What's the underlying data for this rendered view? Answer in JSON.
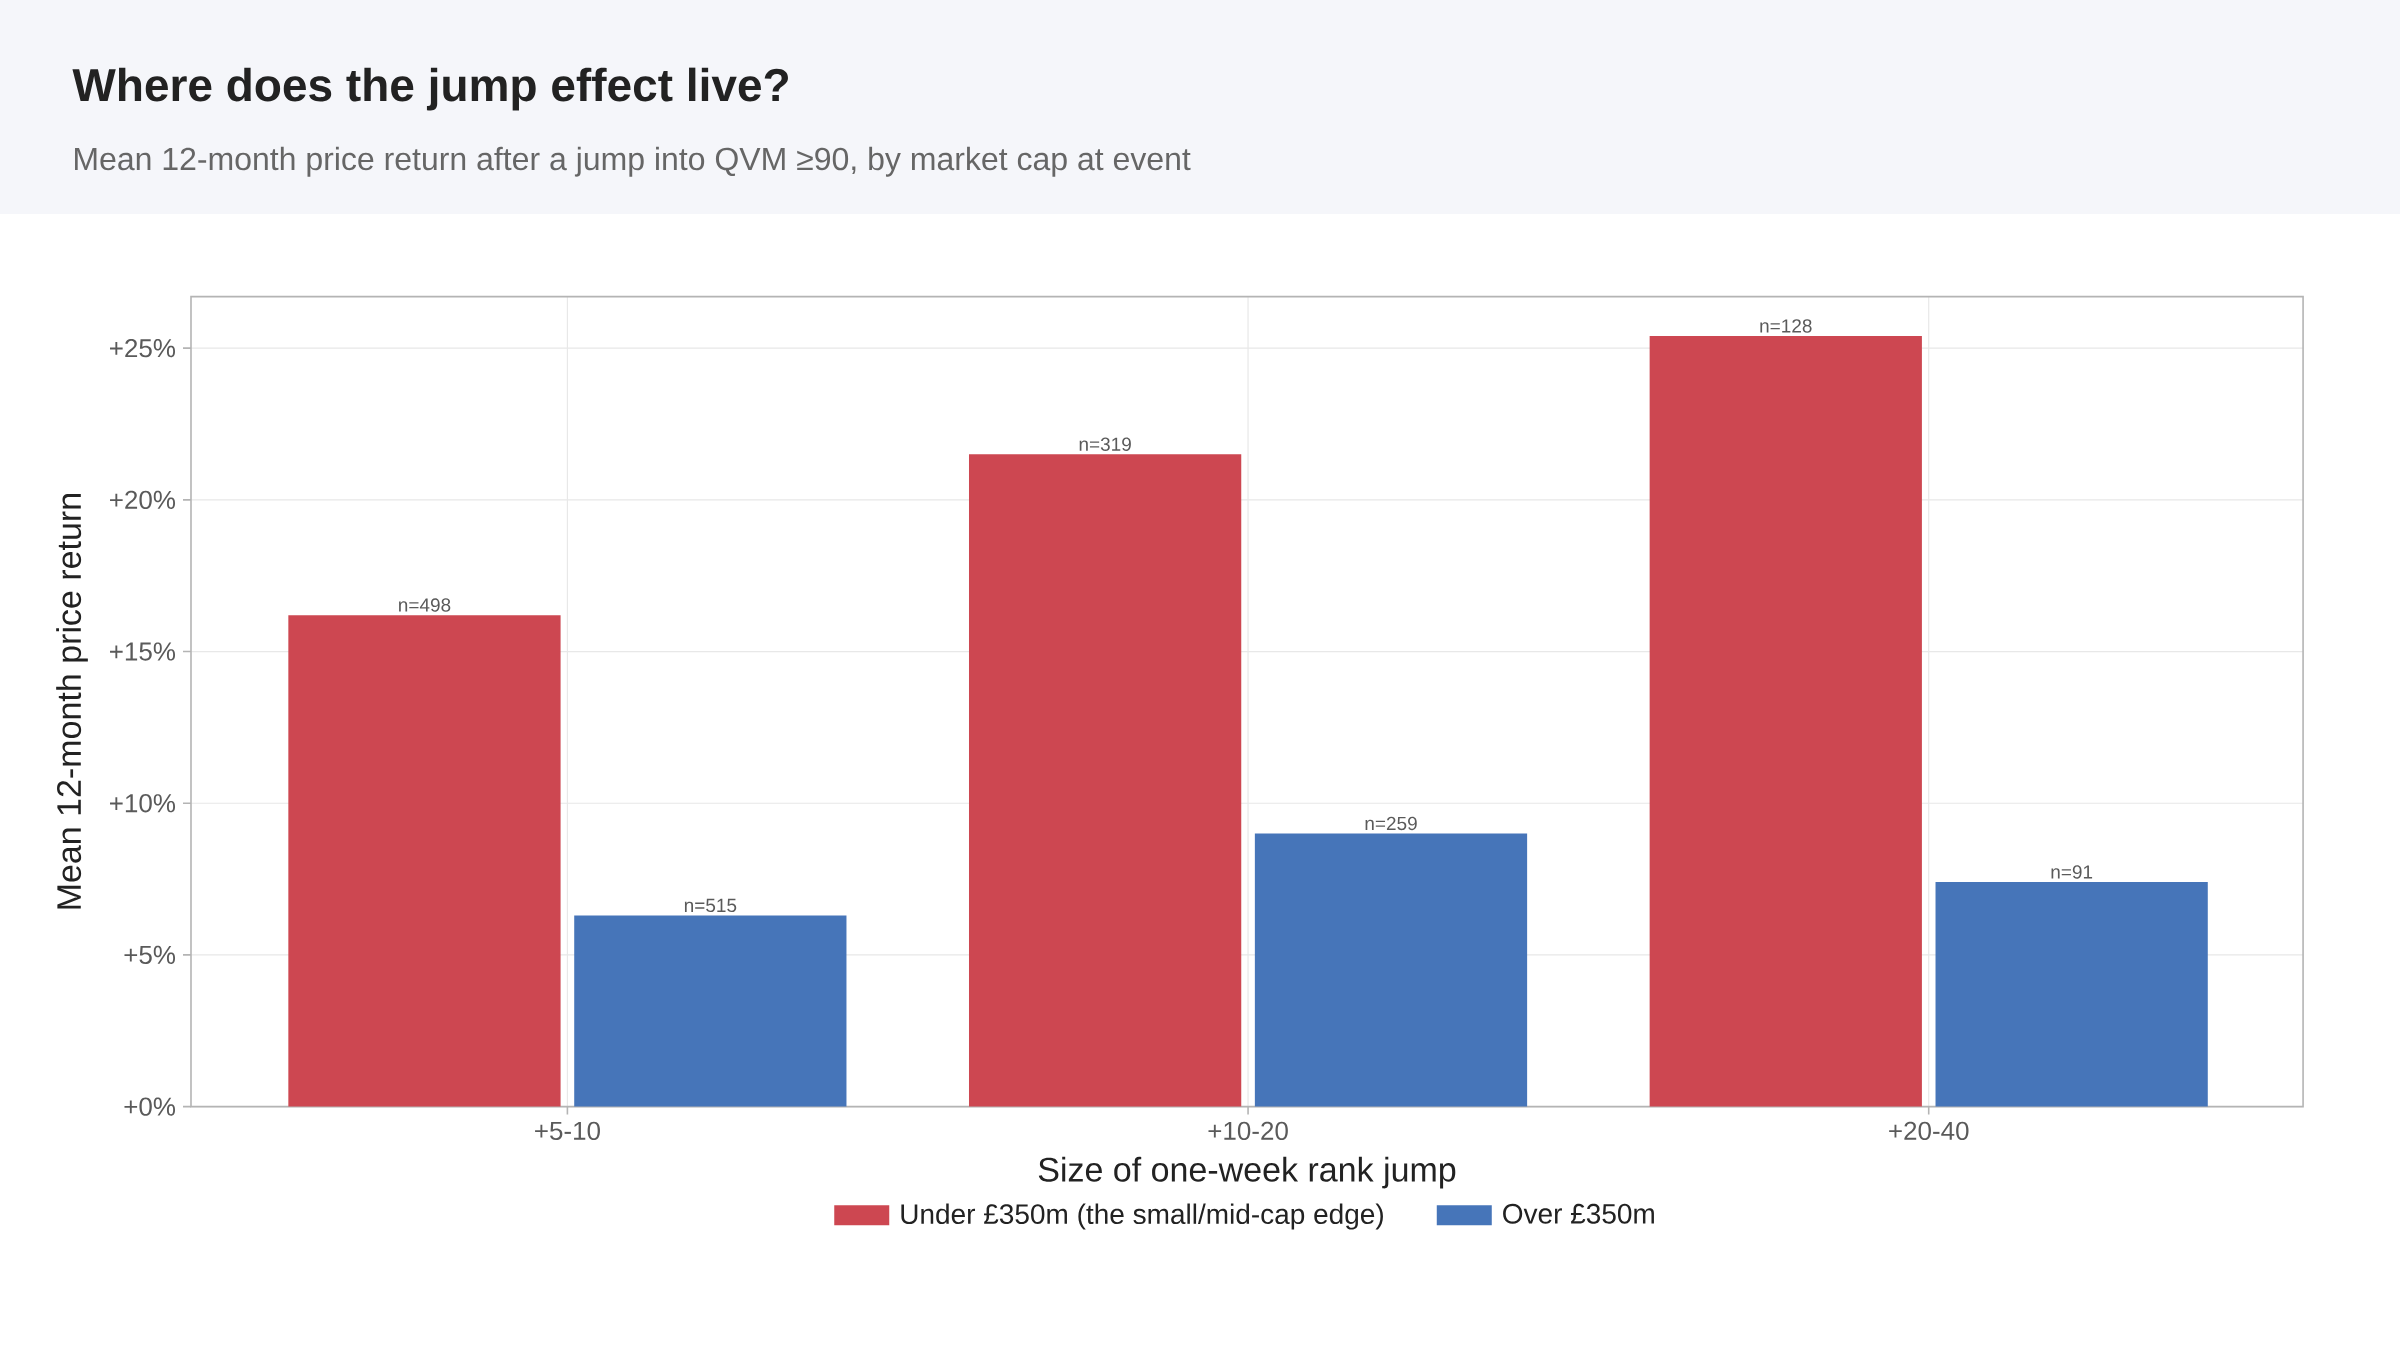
{
  "chart_data": {
    "type": "bar",
    "title": "Where does the jump effect live?",
    "subtitle": "Mean 12-month price return after a jump into QVM ≥90, by market cap at event",
    "xlabel": "Size of one-week rank jump",
    "ylabel": "Mean 12-month price return",
    "categories": [
      "+5-10",
      "+10-20",
      "+20-40"
    ],
    "series": [
      {
        "name": "Under £350m (the small/mid-cap edge)",
        "color": "#cd4751",
        "values": [
          16.2,
          21.5,
          25.4
        ]
      },
      {
        "name": "Over £350m",
        "color": "#4675b9",
        "values": [
          6.3,
          9.0,
          7.4
        ]
      }
    ],
    "annotations": [
      "n=498",
      "n=515",
      "n=319",
      "n=259",
      "n=128",
      "n=91"
    ],
    "ylim": [
      0,
      26.7
    ],
    "yticks": [
      {
        "value": 0,
        "label": "+0%"
      },
      {
        "value": 5,
        "label": "+5%"
      },
      {
        "value": 10,
        "label": "+10%"
      },
      {
        "value": 15,
        "label": "+15%"
      },
      {
        "value": 20,
        "label": "+20%"
      },
      {
        "value": 25,
        "label": "+25%"
      }
    ],
    "grid": true,
    "legend": "bottom"
  }
}
